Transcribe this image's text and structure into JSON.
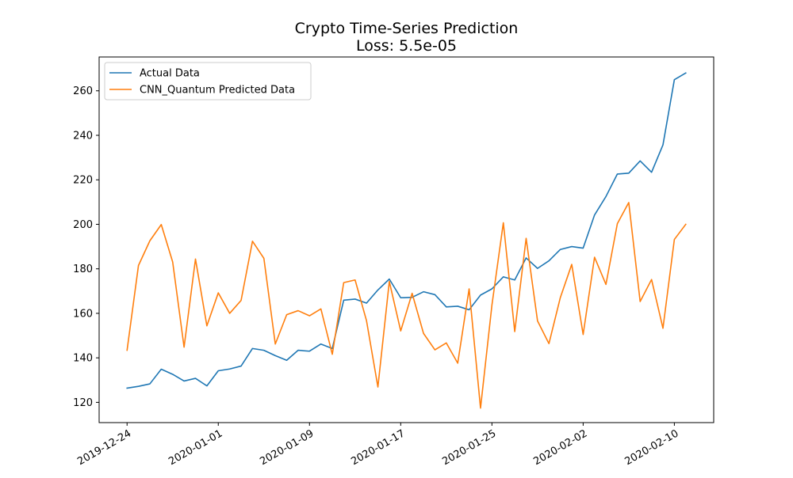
{
  "chart_data": {
    "type": "line",
    "title": "Crypto Time-Series Prediction",
    "subtitle": "Loss: 5.5e-05",
    "xlabel": "",
    "ylabel": "",
    "x_start": "2019-12-24",
    "x": [
      "2019-12-24",
      "2019-12-25",
      "2019-12-26",
      "2019-12-27",
      "2019-12-28",
      "2019-12-29",
      "2019-12-30",
      "2019-12-31",
      "2020-01-01",
      "2020-01-02",
      "2020-01-03",
      "2020-01-04",
      "2020-01-05",
      "2020-01-06",
      "2020-01-07",
      "2020-01-08",
      "2020-01-09",
      "2020-01-10",
      "2020-01-11",
      "2020-01-12",
      "2020-01-13",
      "2020-01-14",
      "2020-01-15",
      "2020-01-16",
      "2020-01-17",
      "2020-01-18",
      "2020-01-19",
      "2020-01-20",
      "2020-01-21",
      "2020-01-22",
      "2020-01-23",
      "2020-01-24",
      "2020-01-25",
      "2020-01-26",
      "2020-01-27",
      "2020-01-28",
      "2020-01-29",
      "2020-01-30",
      "2020-01-31",
      "2020-02-01",
      "2020-02-02",
      "2020-02-03",
      "2020-02-04",
      "2020-02-05",
      "2020-02-06",
      "2020-02-07",
      "2020-02-08",
      "2020-02-09",
      "2020-02-10",
      "2020-02-11"
    ],
    "series": [
      {
        "name": "Actual Data",
        "color": "#1f77b4",
        "values": [
          126.4,
          127.2,
          128.3,
          134.9,
          132.6,
          129.6,
          130.8,
          127.4,
          134.2,
          135.0,
          136.3,
          144.2,
          143.4,
          141.0,
          138.9,
          143.4,
          143.0,
          146.2,
          144.2,
          165.9,
          166.4,
          164.6,
          170.5,
          175.4,
          167.0,
          167.2,
          169.7,
          168.4,
          162.9,
          163.2,
          161.6,
          168.2,
          171.0,
          176.4,
          175.0,
          184.9,
          180.2,
          183.6,
          188.7,
          190.0,
          189.3,
          204.2,
          212.5,
          222.6,
          223.0,
          228.5,
          223.4,
          235.7,
          265.0,
          268.0
        ]
      },
      {
        "name": "CNN_Quantum Predicted Data",
        "color": "#ff7f0e",
        "values": [
          143.4,
          181.5,
          192.6,
          199.9,
          183.1,
          144.8,
          184.4,
          154.4,
          169.2,
          160.0,
          165.8,
          192.4,
          184.7,
          146.2,
          159.4,
          161.2,
          158.9,
          162.0,
          141.6,
          173.8,
          175.0,
          156.7,
          126.9,
          174.3,
          152.1,
          169.0,
          151.0,
          143.6,
          146.7,
          137.6,
          171.0,
          117.4,
          163.7,
          200.7,
          151.8,
          193.7,
          156.6,
          146.4,
          167.1,
          182.0,
          150.5,
          185.2,
          173.0,
          200.3,
          209.8,
          165.3,
          175.2,
          153.3,
          193.2,
          200.0
        ]
      }
    ],
    "x_ticks": [
      "2019-12-24",
      "2020-01-01",
      "2020-01-09",
      "2020-01-17",
      "2020-01-25",
      "2020-02-02",
      "2020-02-10"
    ],
    "x_tick_offsets": [
      0,
      8,
      16,
      24,
      32,
      40,
      48
    ],
    "y_ticks": [
      120,
      140,
      160,
      180,
      200,
      220,
      240,
      260
    ],
    "xlim": [
      -2.45,
      51.45
    ],
    "ylim": [
      110.9,
      275.2
    ],
    "grid": false,
    "legend_position": "upper left"
  }
}
